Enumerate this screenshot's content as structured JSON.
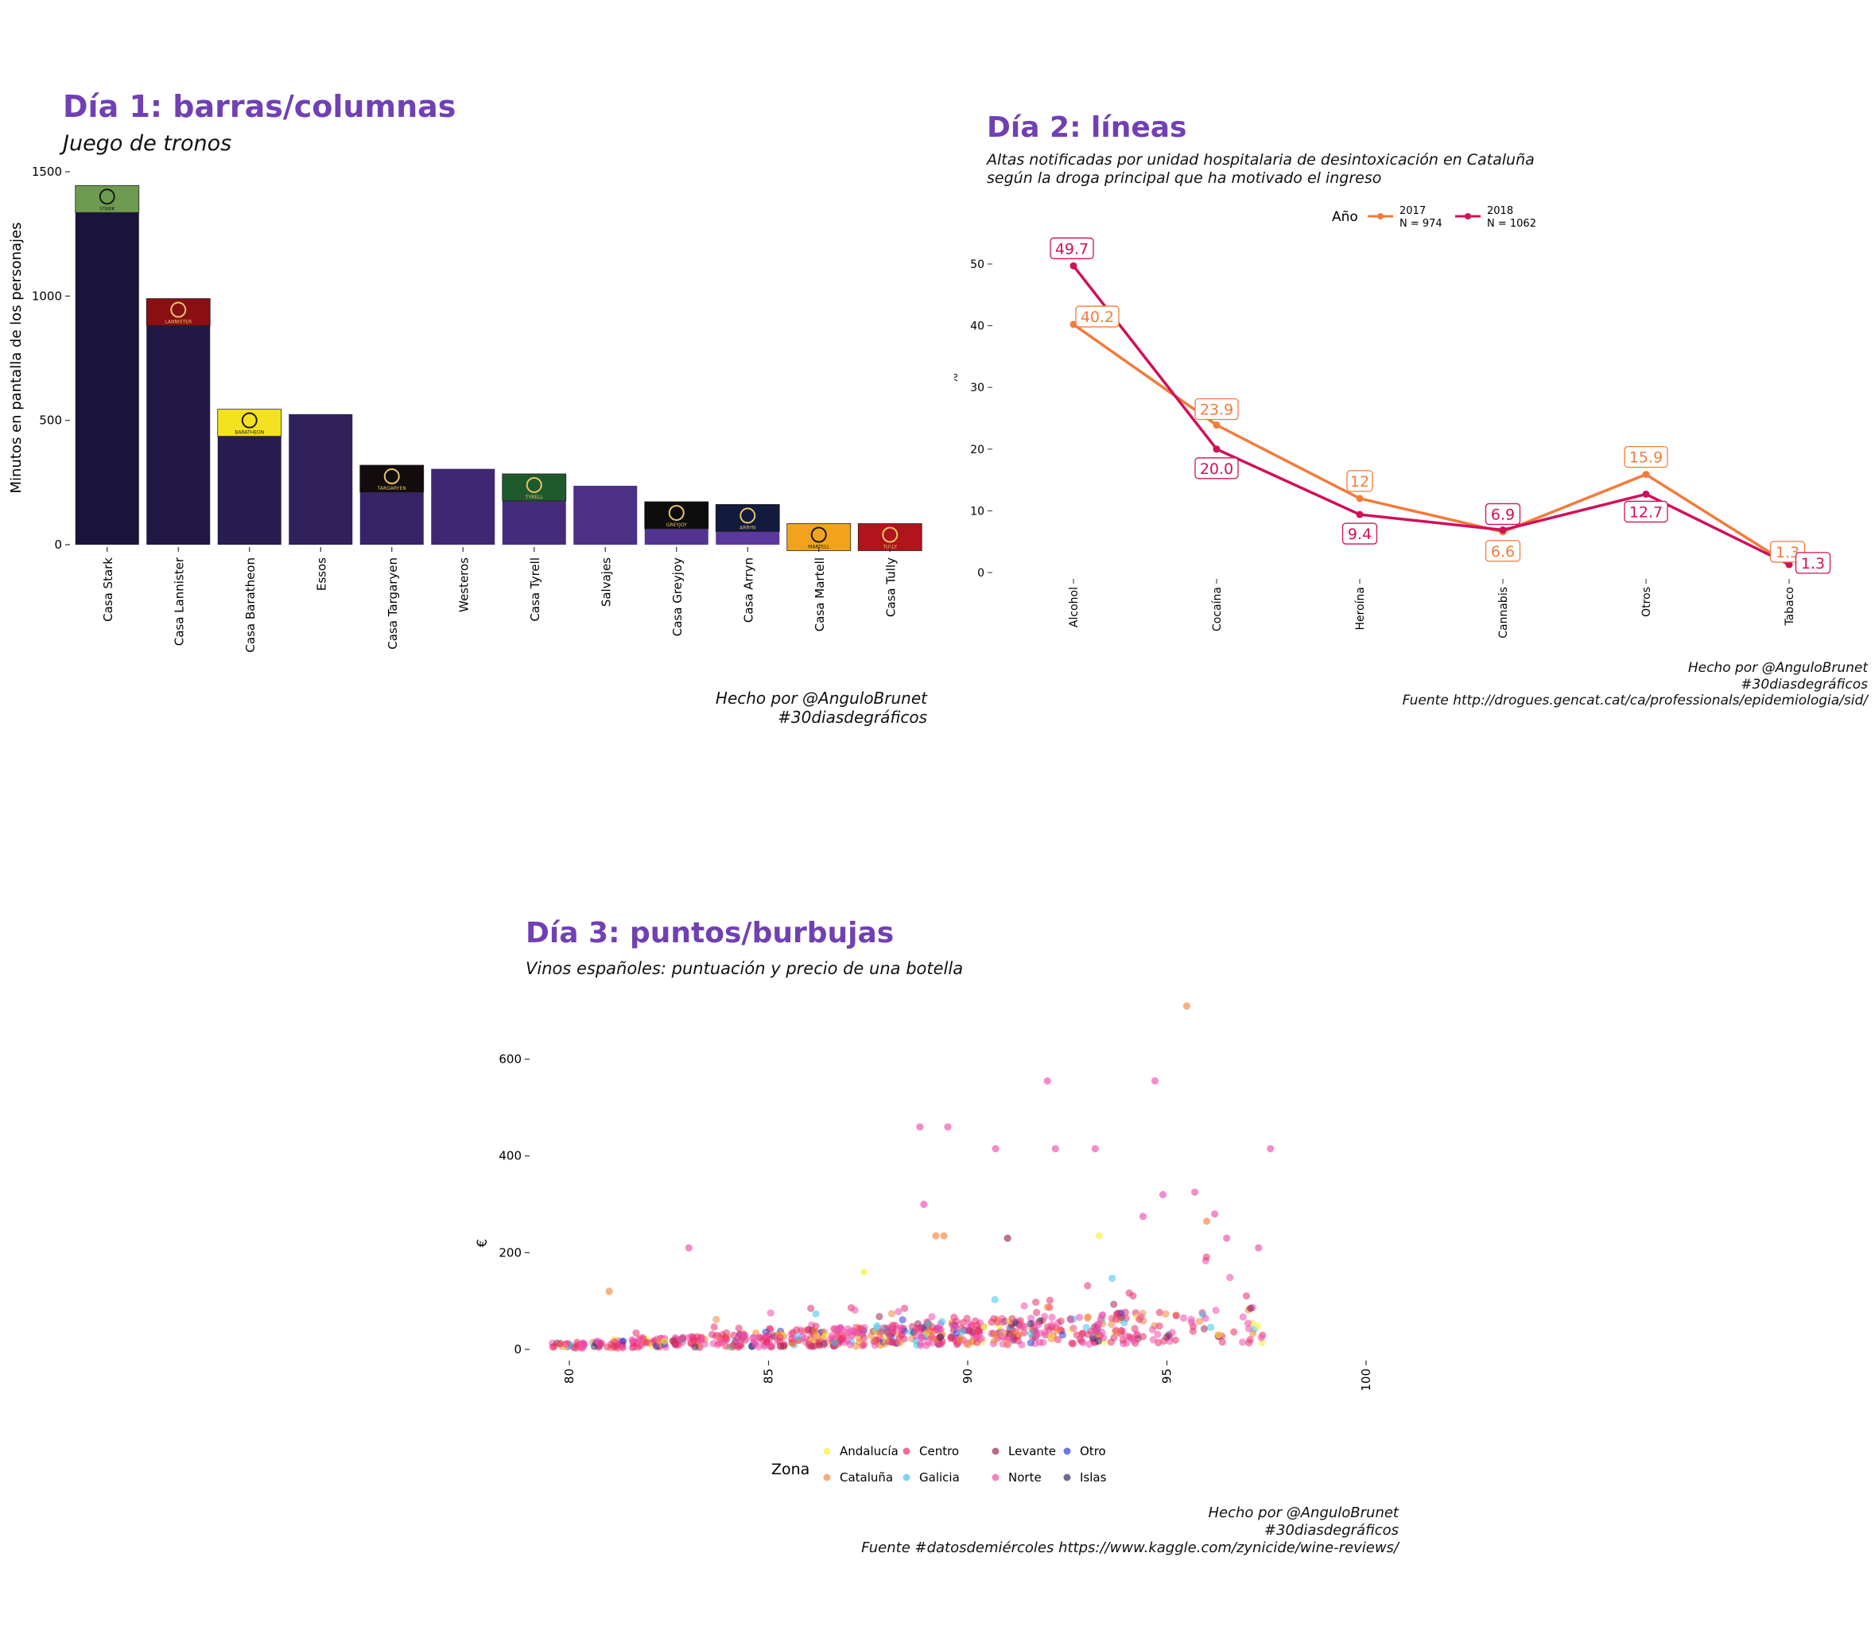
{
  "chart_data": [
    {
      "type": "bar",
      "title": "Día 1: barras/columnas",
      "subtitle": "Juego de tronos",
      "ylabel": "Minutos en pantalla de los personajes",
      "xlabel": "",
      "ylim": [
        0,
        1600
      ],
      "yticks": [
        0,
        500,
        1000,
        1500
      ],
      "categories": [
        "Casa Stark",
        "Casa Lannister",
        "Casa Baratheon",
        "Essos",
        "Casa Targaryen",
        "Westeros",
        "Casa Tyrell",
        "Salvajes",
        "Casa Greyjoy",
        "Casa Arryn",
        "Casa Martell",
        "Casa Tully"
      ],
      "values": [
        1400,
        945,
        500,
        525,
        275,
        305,
        240,
        237,
        128,
        117,
        40,
        40
      ],
      "banners": [
        {
          "house": "Casa Stark",
          "motto": "STARK",
          "color": "#6e9b4f",
          "icon": "wolf-sigil-icon"
        },
        {
          "house": "Casa Lannister",
          "motto": "LANNISTER",
          "color": "#8a0f12",
          "icon": "lion-sigil-icon"
        },
        {
          "house": "Casa Baratheon",
          "motto": "BARATHEON",
          "color": "#f5e21f",
          "icon": "stag-sigil-icon"
        },
        {
          "house": "Casa Targaryen",
          "motto": "TARGARYEN",
          "color": "#120c0c",
          "icon": "dragon-sigil-icon"
        },
        {
          "house": "Casa Tyrell",
          "motto": "TYRELL",
          "color": "#1f5a2c",
          "icon": "rose-sigil-icon"
        },
        {
          "house": "Casa Greyjoy",
          "motto": "GREYJOY",
          "color": "#0c0c0c",
          "icon": "kraken-sigil-icon"
        },
        {
          "house": "Casa Arryn",
          "motto": "ARRYN",
          "color": "#121a3d",
          "icon": "falcon-sigil-icon"
        },
        {
          "house": "Casa Martell",
          "motto": "MARTELL",
          "color": "#f2a31e",
          "icon": "sun-spear-sigil-icon"
        },
        {
          "house": "Casa Tully",
          "motto": "TULLY",
          "color": "#b1141c",
          "icon": "trout-sigil-icon"
        }
      ],
      "caption": [
        "Hecho por @AnguloBrunet",
        "#30diasdegráficos"
      ]
    },
    {
      "type": "line",
      "title": "Día 2: líneas",
      "subtitle": [
        "Altas notificadas por unidad hospitalaria de desintoxicación en Cataluña",
        "según la droga principal que ha motivado el ingreso"
      ],
      "ylabel": "%",
      "xlabel": "",
      "ylim": [
        0,
        53
      ],
      "yticks": [
        0,
        10,
        20,
        30,
        40,
        50
      ],
      "categories": [
        "Alcohol",
        "Cocaína",
        "Heroína",
        "Cannabis",
        "Otros",
        "Tabaco"
      ],
      "legend_title": "Año",
      "legend_position": "top",
      "series": [
        {
          "name": "2017",
          "sub": "N = 974",
          "color": "#f47b3b",
          "values": [
            40.2,
            23.9,
            12,
            6.6,
            15.9,
            1.3
          ],
          "labels": [
            "40.2",
            "23.9",
            "12",
            "6.6",
            "15.9",
            "1.3"
          ]
        },
        {
          "name": "2018",
          "sub": "N = 1062",
          "color": "#d0105a",
          "values": [
            49.7,
            20.0,
            9.4,
            6.9,
            12.7,
            1.3
          ],
          "labels": [
            "49.7",
            "20.0",
            "9.4",
            "6.9",
            "12.7",
            "1.3"
          ]
        }
      ],
      "caption": [
        "Hecho por @AnguloBrunet",
        "#30diasdegráficos",
        "Fuente http://drogues.gencat.cat/ca/professionals/epidemiologia/sid/"
      ]
    },
    {
      "type": "scatter",
      "title": "Día 3: puntos/burbujas",
      "subtitle": "Vinos españoles: puntuación y precio de una botella",
      "ylabel": "€",
      "xlabel": "",
      "xlim": [
        80,
        100
      ],
      "xticks": [
        80,
        85,
        90,
        95,
        100
      ],
      "ylim": [
        0,
        720
      ],
      "yticks": [
        0,
        200,
        400,
        600
      ],
      "legend_title": "Zona",
      "legend_position": "bottom",
      "zones": [
        {
          "name": "Andalucía",
          "color": "#f6ef3c"
        },
        {
          "name": "Cataluña",
          "color": "#f4873a"
        },
        {
          "name": "Centro",
          "color": "#e8306a"
        },
        {
          "name": "Galicia",
          "color": "#3ec5ef"
        },
        {
          "name": "Levante",
          "color": "#9b2a55"
        },
        {
          "name": "Norte",
          "color": "#ee4fb0"
        },
        {
          "name": "Otro",
          "color": "#2f3ed6"
        },
        {
          "name": "Islas",
          "color": "#3b2a63"
        }
      ],
      "highlight_points": [
        {
          "x": 95.5,
          "y": 710,
          "zone": "Cataluña"
        },
        {
          "x": 92,
          "y": 555,
          "zone": "Norte"
        },
        {
          "x": 94.7,
          "y": 555,
          "zone": "Norte"
        },
        {
          "x": 88.8,
          "y": 460,
          "zone": "Norte"
        },
        {
          "x": 89.5,
          "y": 460,
          "zone": "Norte"
        },
        {
          "x": 90.7,
          "y": 415,
          "zone": "Norte"
        },
        {
          "x": 92.2,
          "y": 415,
          "zone": "Norte"
        },
        {
          "x": 93.2,
          "y": 415,
          "zone": "Norte"
        },
        {
          "x": 97.6,
          "y": 415,
          "zone": "Norte"
        },
        {
          "x": 95.7,
          "y": 325,
          "zone": "Norte"
        },
        {
          "x": 94.9,
          "y": 320,
          "zone": "Norte"
        },
        {
          "x": 88.9,
          "y": 300,
          "zone": "Norte"
        },
        {
          "x": 96.2,
          "y": 280,
          "zone": "Norte"
        },
        {
          "x": 94.4,
          "y": 275,
          "zone": "Norte"
        },
        {
          "x": 96,
          "y": 265,
          "zone": "Cataluña"
        },
        {
          "x": 89.2,
          "y": 235,
          "zone": "Cataluña"
        },
        {
          "x": 89.4,
          "y": 235,
          "zone": "Cataluña"
        },
        {
          "x": 93.3,
          "y": 235,
          "zone": "Andalucía"
        },
        {
          "x": 96.5,
          "y": 230,
          "zone": "Norte"
        },
        {
          "x": 91,
          "y": 230,
          "zone": "Levante"
        },
        {
          "x": 83,
          "y": 210,
          "zone": "Norte"
        },
        {
          "x": 97.3,
          "y": 210,
          "zone": "Norte"
        },
        {
          "x": 87.4,
          "y": 160,
          "zone": "Andalucía"
        },
        {
          "x": 81,
          "y": 120,
          "zone": "Cataluña"
        },
        {
          "x": 97.1,
          "y": 85,
          "zone": "Levante"
        },
        {
          "x": 96.3,
          "y": 30,
          "zone": "Andalucía"
        }
      ],
      "caption": [
        "Hecho por @AnguloBrunet",
        "#30diasdegráficos",
        "Fuente #datosdemiércoles https://www.kaggle.com/zynicide/wine-reviews/"
      ]
    }
  ]
}
